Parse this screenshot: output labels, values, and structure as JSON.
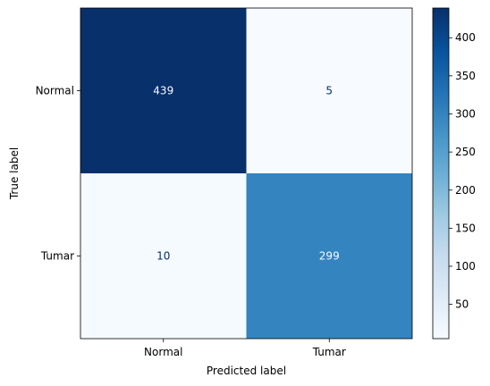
{
  "chart_data": {
    "type": "heatmap",
    "title": "",
    "xlabel": "Predicted label",
    "ylabel": "True label",
    "x_categories": [
      "Normal",
      "Tumar"
    ],
    "y_categories": [
      "Normal",
      "Tumar"
    ],
    "values": [
      [
        439,
        5
      ],
      [
        10,
        299
      ]
    ],
    "colormap": "Blues",
    "colorbar": {
      "min": 5,
      "max": 439,
      "ticks": [
        50,
        100,
        150,
        200,
        250,
        300,
        350,
        400
      ]
    },
    "grid": false
  },
  "colors": {
    "cell_low": "#f7fbff",
    "cell_high": "#08306b",
    "text_light": "#f7fbff",
    "text_dark": "#08306b",
    "axis": "#000000"
  }
}
